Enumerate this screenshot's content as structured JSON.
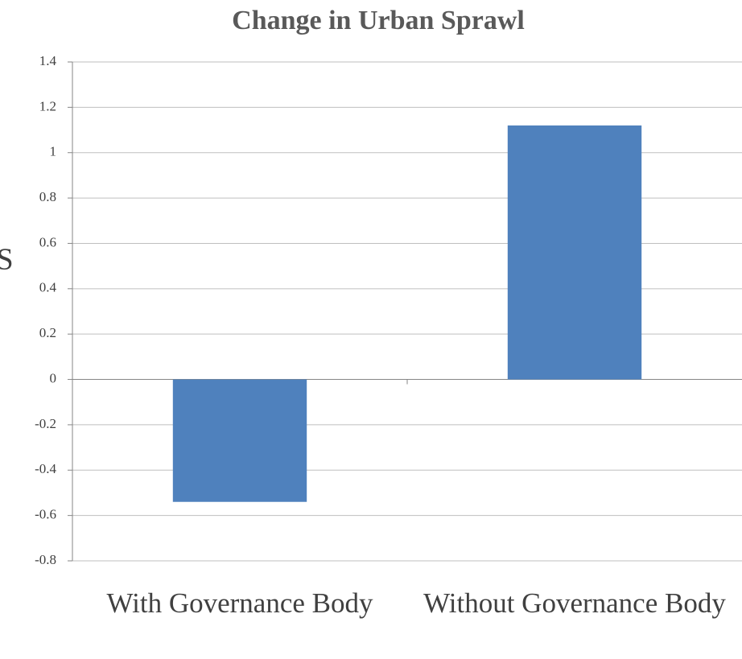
{
  "chart_data": {
    "type": "bar",
    "title": "Change in Urban Sprawl",
    "ylabel": "S",
    "categories": [
      "With Governance Body",
      "Without Governance Body"
    ],
    "values": [
      -0.54,
      1.12
    ],
    "color": "#4f81bd",
    "ylim": [
      -0.8,
      1.4
    ],
    "yticks": [
      -0.8,
      -0.6,
      -0.4,
      -0.2,
      0,
      0.2,
      0.4,
      0.6,
      0.8,
      1,
      1.2,
      1.4
    ],
    "grid": true
  }
}
